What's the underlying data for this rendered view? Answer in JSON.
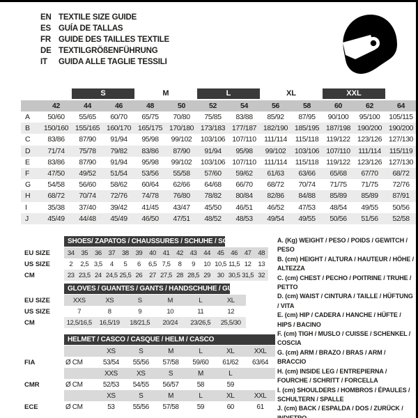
{
  "page": {
    "languages": [
      {
        "code": "EN",
        "title": "TEXTILE SIZE GUIDE"
      },
      {
        "code": "ES",
        "title": "GUÍA DE TALLAS"
      },
      {
        "code": "FR",
        "title": "GUIDE DES TAILLES TEXTILE"
      },
      {
        "code": "DE",
        "title": "TEXTILGRÖßENFÜHRUNG"
      },
      {
        "code": "IT",
        "title": "GUIDA ALLE TAGLIE TESSILI"
      }
    ]
  },
  "textile_table": {
    "size_bands": [
      {
        "label": "S",
        "dark": true
      },
      {
        "label": "M",
        "dark": false
      },
      {
        "label": "L",
        "dark": true
      },
      {
        "label": "XL",
        "dark": false
      },
      {
        "label": "XXL",
        "dark": true
      }
    ],
    "columns": [
      "42",
      "44",
      "46",
      "48",
      "50",
      "52",
      "54",
      "56",
      "58",
      "60",
      "62",
      "64"
    ],
    "rows": [
      {
        "label": "A",
        "values": [
          "50/60",
          "55/65",
          "60/70",
          "65/75",
          "70/80",
          "75/85",
          "83/88",
          "85/92",
          "87/95",
          "90/100",
          "95/100",
          "105/115"
        ]
      },
      {
        "label": "B",
        "values": [
          "150/160",
          "155/165",
          "160/170",
          "165/175",
          "170/180",
          "173/183",
          "177/187",
          "182/190",
          "185/195",
          "187/198",
          "190/200",
          "190/200"
        ]
      },
      {
        "label": "C",
        "values": [
          "83/86",
          "87/90",
          "91/94",
          "95/98",
          "99/102",
          "103/106",
          "107/110",
          "111/114",
          "115/118",
          "119/122",
          "123/126",
          "127/130"
        ]
      },
      {
        "label": "D",
        "values": [
          "71/74",
          "75/78",
          "79/82",
          "83/86",
          "87/90",
          "91/94",
          "95/98",
          "99/102",
          "103/106",
          "107/110",
          "111/114",
          "115/119"
        ]
      },
      {
        "label": "E",
        "values": [
          "83/86",
          "87/90",
          "91/94",
          "95/98",
          "99/102",
          "103/106",
          "107/110",
          "111/114",
          "115/118",
          "119/122",
          "123/126",
          "127/130"
        ]
      },
      {
        "label": "F",
        "values": [
          "47/50",
          "49/52",
          "51/54",
          "53/56",
          "55/58",
          "57/60",
          "59/62",
          "61/63",
          "63/66",
          "65/68",
          "67/70",
          "68/72"
        ]
      },
      {
        "label": "G",
        "values": [
          "54/58",
          "56/60",
          "58/62",
          "60/64",
          "62/66",
          "64/68",
          "66/70",
          "68/72",
          "70/74",
          "71/75",
          "71/75",
          "72/76"
        ]
      },
      {
        "label": "H",
        "values": [
          "68/72",
          "70/74",
          "72/76",
          "74/78",
          "76/80",
          "78/82",
          "80/84",
          "82/86",
          "84/88",
          "85/89",
          "85/89",
          "87/91"
        ]
      },
      {
        "label": "I",
        "values": [
          "35/38",
          "37/40",
          "39/42",
          "41/45",
          "43/47",
          "45/50",
          "46/51",
          "46/52",
          "47/53",
          "48/54",
          "49/55",
          "50/56"
        ]
      },
      {
        "label": "J",
        "values": [
          "45/49",
          "44/48",
          "45/49",
          "46/50",
          "47/51",
          "48/52",
          "48/53",
          "49/54",
          "49/55",
          "50/56",
          "51/56",
          "52/58"
        ]
      }
    ]
  },
  "shoes_table": {
    "title": "SHOES/ ZAPATOS / CHAUSSURES / SCHUHE / SCARPE",
    "row_labels": [
      "EU SIZE",
      "US SIZE",
      "CM"
    ],
    "eu": [
      "34",
      "35",
      "36",
      "37",
      "38",
      "39",
      "40",
      "41",
      "42",
      "43",
      "44",
      "45",
      "46",
      "47",
      "48"
    ],
    "us": [
      "2",
      "2,5",
      "3,5",
      "4",
      "5",
      "6",
      "6,5",
      "7,5",
      "8",
      "9",
      "10",
      "10,5",
      "11,5",
      "12",
      "13"
    ],
    "cm": [
      "23",
      "23,5",
      "24",
      "24,5",
      "25,5",
      "26",
      "27",
      "27,5",
      "28",
      "28,5",
      "29",
      "30",
      "30,5",
      "31,5",
      "32"
    ]
  },
  "gloves_table": {
    "title": "GLOVES / GUANTES / GANTS / HANDSCHUHE / GUANTI",
    "row_labels": [
      "EU SIZE",
      "US SIZE",
      "CM"
    ],
    "eu": [
      "XXS",
      "XS",
      "S",
      "M",
      "L",
      "XL"
    ],
    "us": [
      "7",
      "8",
      "9",
      "10",
      "11",
      "12"
    ],
    "cm": [
      "12,5/16,5",
      "16,5/19",
      "18/21,5",
      "20/24",
      "23/26,5",
      "25,5/30"
    ]
  },
  "helmet_table": {
    "title": "HELMET / CASCO / CASQUE / HELM / CASCO",
    "sections": [
      {
        "label": "FIA",
        "unit": "Ø CM",
        "sizes": [
          "XS",
          "S",
          "M",
          "L",
          "XL",
          "XXL"
        ],
        "values": [
          "53/54",
          "55/56",
          "57/58",
          "59/60",
          "61/62",
          "63/64"
        ]
      },
      {
        "label": "CMR",
        "unit": "Ø CM",
        "sizes": [
          "XXS",
          "XS",
          "S",
          "M",
          "L"
        ],
        "values": [
          "52/53",
          "54/55",
          "56/57",
          "58",
          "59"
        ]
      },
      {
        "label": "ECE",
        "unit": "Ø CM",
        "sizes": [
          "XS",
          "S",
          "M",
          "L",
          "XL",
          "XXL"
        ],
        "values": [
          "53",
          "55/56",
          "57/58",
          "59",
          "60",
          "61"
        ]
      }
    ]
  },
  "legend": {
    "items": [
      "A. (Kg) WEIGHT / PESO / POIDS / GEWITCH / PESO",
      "B. (cm) HEIGHT / ALTURA / HAUTEUR / HÖHE / ALTEZZA",
      "C. (cm) CHEST / PECHO / POITRINE / TRUHE / PETTO",
      "D. (cm) WAIST / CINTURA / TAILLE / HÜFTUNG / VITA",
      "E. (cm) HIP / CADERA / HANCHE / HÜFTE / HIPS /  BACINO",
      "F.  (cm) TIGH / MUSLO / CUISSE / SCHENKEL / COSCIA",
      "G. (cm) ARM  / BRAZO / BRAS / ARM / BRACCIO",
      "H. (cm) INSIDE LEG / ENTREPIERNA / FOURCHE / SCHRITT / FORCELLA",
      "I.  (cm) SHOULDERS / HOMBROS / ÉPAULES / SCHULTERN / SPALLE",
      "J. (cm) BACK / ESPALDA / DOS / ZURÜCK / INDIETRO"
    ]
  },
  "colors": {
    "dark_band": "#3a3a3a",
    "header_gray": "#c5c5c5",
    "stripe_gray": "#ebebeb",
    "size_row_gray": "#d9d9d9",
    "cm_row_gray": "#e7e7e7"
  }
}
